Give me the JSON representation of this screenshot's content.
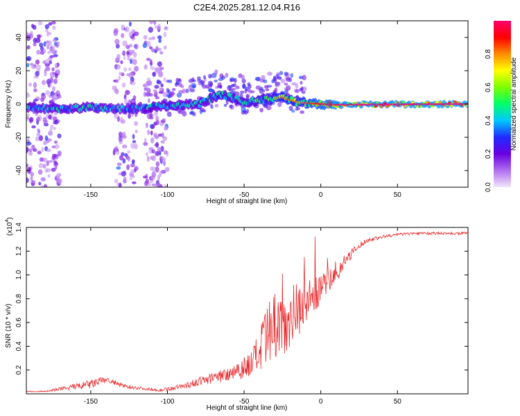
{
  "title": "C2E4.2025.281.12.04.R16",
  "chart_data": [
    {
      "type": "heatmap",
      "name": "spectrogram",
      "xlabel": "Height of straight line (km)",
      "ylabel": "Frequency (Hz)",
      "xlim": [
        -192,
        96
      ],
      "ylim": [
        -50,
        50
      ],
      "xticks": [
        -150,
        -100,
        -50,
        0,
        50
      ],
      "yticks": [
        -40,
        -20,
        0,
        20,
        40
      ],
      "colorbar": {
        "label": "Normalized spectral amplitude",
        "range": [
          0,
          1
        ],
        "ticks": [
          "0.0",
          "0.2",
          "0.4",
          "0.6",
          "0.8"
        ],
        "tick_values": [
          0,
          0.2,
          0.4,
          0.6,
          0.8
        ],
        "colors": [
          "#f2e6fa",
          "#b06ff0",
          "#6a00e0",
          "#1f2aff",
          "#00c8ff",
          "#00ff6a",
          "#7cff00",
          "#ffff00",
          "#ff8c00",
          "#ff0000",
          "#ff006e"
        ]
      },
      "ridge": [
        {
          "x": -192,
          "f": -2,
          "amp": 0.45
        },
        {
          "x": -170,
          "f": -3,
          "amp": 0.5
        },
        {
          "x": -150,
          "f": -2,
          "amp": 0.5
        },
        {
          "x": -130,
          "f": -3,
          "amp": 0.45
        },
        {
          "x": -110,
          "f": -2,
          "amp": 0.5
        },
        {
          "x": -100,
          "f": -1,
          "amp": 0.5
        },
        {
          "x": -80,
          "f": 0,
          "amp": 0.5
        },
        {
          "x": -65,
          "f": 6,
          "amp": 0.55
        },
        {
          "x": -50,
          "f": 1,
          "amp": 0.55
        },
        {
          "x": -35,
          "f": 3,
          "amp": 0.6
        },
        {
          "x": -25,
          "f": 4,
          "amp": 0.75
        },
        {
          "x": -15,
          "f": 1,
          "amp": 0.7
        },
        {
          "x": 0,
          "f": 0,
          "amp": 0.85
        },
        {
          "x": 10,
          "f": -0.5,
          "amp": 0.9
        },
        {
          "x": 96,
          "f": 0,
          "amp": 0.95
        }
      ]
    },
    {
      "type": "line",
      "name": "snr",
      "xlabel": "Height of straight line (km)",
      "ylabel": "SNR (10 * v/v)",
      "yscale_label": "(x10",
      "yscale_exp": "4",
      "xlim": [
        -192,
        96
      ],
      "ylim": [
        0,
        1.4
      ],
      "xticks": [
        -150,
        -100,
        -50,
        0,
        50
      ],
      "yticks": [
        "0.2",
        "0.4",
        "0.6",
        "0.8",
        "1.0",
        "1.2",
        "1.4"
      ],
      "ytick_values": [
        0.2,
        0.4,
        0.6,
        0.8,
        1.0,
        1.2,
        1.4
      ],
      "color": "#e8282b",
      "x": [
        -192,
        -180,
        -165,
        -150,
        -140,
        -130,
        -120,
        -105,
        -95,
        -85,
        -75,
        -65,
        -55,
        -45,
        -40,
        -35,
        -30,
        -25,
        -20,
        -15,
        -10,
        -5,
        0,
        5,
        10,
        15,
        20,
        25,
        30,
        40,
        50,
        60,
        70,
        80,
        96
      ],
      "values": [
        0.02,
        0.02,
        0.05,
        0.08,
        0.12,
        0.07,
        0.05,
        0.03,
        0.05,
        0.08,
        0.12,
        0.15,
        0.2,
        0.25,
        0.35,
        0.45,
        0.55,
        0.6,
        0.65,
        0.72,
        0.78,
        0.82,
        0.88,
        0.95,
        1.0,
        1.1,
        1.18,
        1.24,
        1.29,
        1.32,
        1.34,
        1.35,
        1.35,
        1.35,
        1.35
      ],
      "noise": [
        0.005,
        0.005,
        0.02,
        0.04,
        0.03,
        0.02,
        0.015,
        0.01,
        0.02,
        0.03,
        0.04,
        0.06,
        0.08,
        0.12,
        0.2,
        0.3,
        0.3,
        0.3,
        0.25,
        0.25,
        0.2,
        0.15,
        0.12,
        0.1,
        0.08,
        0.06,
        0.04,
        0.03,
        0.02,
        0.015,
        0.012,
        0.012,
        0.012,
        0.012,
        0.012
      ]
    }
  ]
}
